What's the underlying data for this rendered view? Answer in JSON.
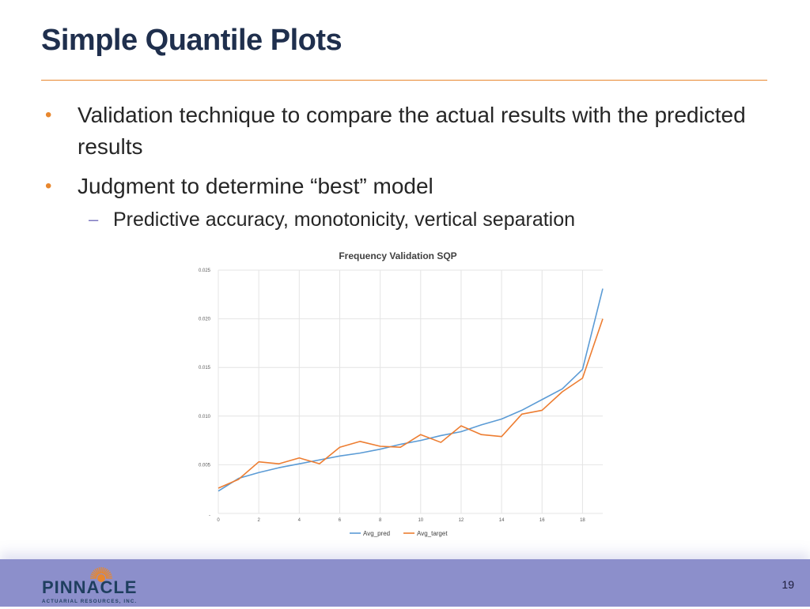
{
  "slide": {
    "title": "Simple Quantile Plots",
    "bullets": [
      "Validation technique to compare the actual results with the predicted results",
      "Judgment to determine “best” model"
    ],
    "sub_bullets": [
      "Predictive accuracy, monotonicity, vertical separation"
    ],
    "page_number": "19"
  },
  "logo": {
    "name": "PINNACLE",
    "tagline": "ACTUARIAL RESOURCES, INC."
  },
  "colors": {
    "accent": "#e8872e",
    "title": "#1f2f4d",
    "footer": "#8c8fcb",
    "pred": "#5b9bd5",
    "target": "#ed7d31"
  },
  "chart_data": {
    "type": "line",
    "title": "Frequency Validation SQP",
    "x": [
      0,
      1,
      2,
      3,
      4,
      5,
      6,
      7,
      8,
      9,
      10,
      11,
      12,
      13,
      14,
      15,
      16,
      17,
      18,
      19
    ],
    "x_ticks": [
      "0",
      "2",
      "4",
      "6",
      "8",
      "10",
      "12",
      "14",
      "16",
      "18"
    ],
    "y_ticks": [
      "-",
      "0.005",
      "0.010",
      "0.015",
      "0.020",
      "0.025"
    ],
    "xlim": [
      0,
      19
    ],
    "ylim": [
      0,
      0.025
    ],
    "grid": true,
    "legend": "bottom",
    "series": [
      {
        "name": "Avg_pred",
        "values": [
          0.0023,
          0.0036,
          0.0042,
          0.0047,
          0.0051,
          0.0055,
          0.0059,
          0.0062,
          0.0066,
          0.0071,
          0.0075,
          0.008,
          0.0084,
          0.0091,
          0.0097,
          0.0106,
          0.0117,
          0.0128,
          0.0148,
          0.0231
        ]
      },
      {
        "name": "Avg_target",
        "values": [
          0.0026,
          0.0035,
          0.0053,
          0.0051,
          0.0057,
          0.0051,
          0.0068,
          0.0074,
          0.0069,
          0.0068,
          0.0081,
          0.0073,
          0.009,
          0.0081,
          0.0079,
          0.0102,
          0.0106,
          0.0125,
          0.0139,
          0.02
        ]
      }
    ]
  }
}
